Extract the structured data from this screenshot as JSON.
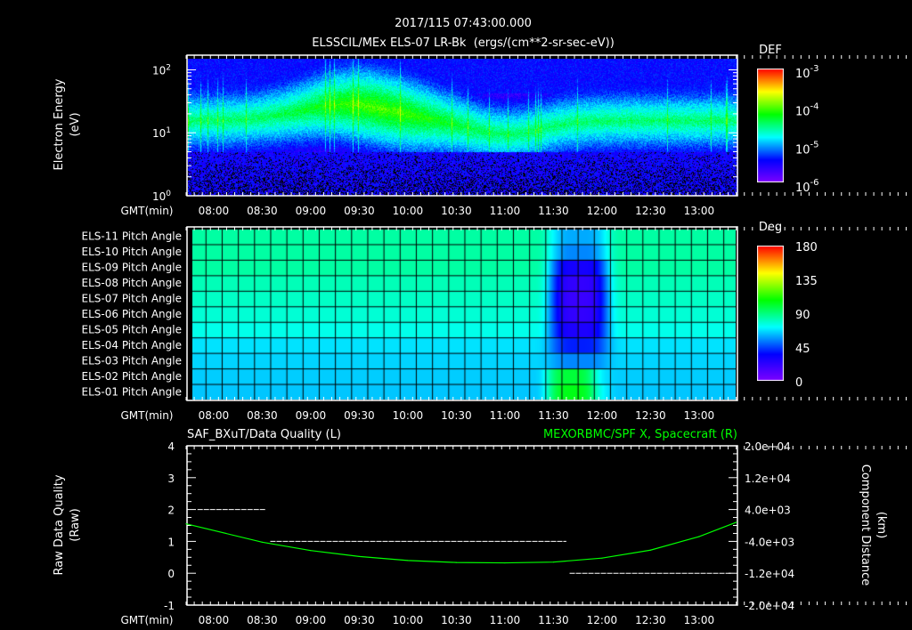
{
  "header": {
    "timestamp": "2017/115 07:43:00.000"
  },
  "chart_data": [
    {
      "type": "heatmap",
      "title": "ELSSCIL/MEx ELS-07 LR-Bk  (ergs/(cm**2-sr-sec-eV))",
      "ylabel": "Electron Energy (eV)",
      "yscale": "log",
      "ylim": [
        1,
        150
      ],
      "yticks": [
        "10^0",
        "10^1",
        "10^2"
      ],
      "xlabel": "GMT(min)",
      "xrange_min": [
        463,
        1403.6
      ],
      "xticks": [
        "08:00",
        "08:30",
        "09:00",
        "09:30",
        "10:00",
        "10:30",
        "11:00",
        "11:30",
        "12:00",
        "12:30",
        "13:00"
      ],
      "colorbar": {
        "label": "DEF",
        "scale": "log",
        "range": [
          1e-06,
          0.001
        ],
        "ticks": [
          "10^-3",
          "10^-4",
          "10^-5",
          "10^-6"
        ]
      }
    },
    {
      "type": "heatmap",
      "ylabels": [
        "ELS-11 Pitch Angle",
        "ELS-10 Pitch Angle",
        "ELS-09 Pitch Angle",
        "ELS-08 Pitch Angle",
        "ELS-07 Pitch Angle",
        "ELS-06 Pitch Angle",
        "ELS-05 Pitch Angle",
        "ELS-04 Pitch Angle",
        "ELS-03 Pitch Angle",
        "ELS-02 Pitch Angle",
        "ELS-01 Pitch Angle"
      ],
      "row_baseline_deg": [
        85,
        85,
        85,
        82,
        80,
        78,
        75,
        68,
        66,
        65,
        64
      ],
      "row_dip_deg": [
        60,
        55,
        30,
        22,
        20,
        22,
        28,
        40,
        55,
        70,
        75
      ],
      "xlabel": "GMT(min)",
      "xticks": [
        "08:00",
        "08:30",
        "09:00",
        "09:30",
        "10:00",
        "10:30",
        "11:00",
        "11:30",
        "12:00",
        "12:30",
        "13:00"
      ],
      "colorbar": {
        "label": "Deg",
        "range": [
          0,
          180
        ],
        "ticks": [
          "180",
          "135",
          "90",
          "45",
          "0"
        ]
      }
    },
    {
      "type": "line",
      "title_left": "SAF_BXuT/Data Quality (L)",
      "title_right": "MEXORBMC/SPF X, Spacecraft (R)",
      "ylabel_left": "Raw Data Quality (Raw)",
      "ylabel_right": "Component Distance (km)",
      "ylim_left": [
        -1,
        4
      ],
      "yticks_left": [
        "4",
        "3",
        "2",
        "1",
        "0",
        "-1"
      ],
      "ylim_right": [
        -20000,
        20000
      ],
      "yticks_right": [
        "2.0e+04",
        "1.2e+04",
        "4.0e+03",
        "-4.0e+03",
        "-1.2e+04",
        "-2.0e+04"
      ],
      "xlabel": "GMT(min)",
      "xticks": [
        "08:00",
        "08:30",
        "09:00",
        "09:30",
        "10:00",
        "10:30",
        "11:00",
        "11:30",
        "12:00",
        "12:30",
        "13:00"
      ],
      "series": [
        {
          "name": "Data Quality",
          "color": "#ffffff",
          "style": "dashed",
          "segments": [
            {
              "x": [
                "07:50",
                "08:32"
              ],
              "y": 2
            },
            {
              "x": [
                "08:35",
                "11:38"
              ],
              "y": 1
            },
            {
              "x": [
                "11:40",
                "13:20"
              ],
              "y": 0
            }
          ]
        },
        {
          "name": "SPF X",
          "color": "#00ff00",
          "x": [
            "07:43",
            "08:30",
            "09:00",
            "09:30",
            "10:00",
            "10:30",
            "11:00",
            "11:30",
            "12:00",
            "12:30",
            "13:00",
            "13:23"
          ],
          "y": [
            400,
            -4200,
            -6300,
            -7800,
            -8800,
            -9300,
            -9400,
            -9200,
            -8200,
            -6200,
            -2800,
            800
          ]
        }
      ]
    }
  ],
  "colors": {
    "green_line": "#00ff00",
    "background": "#000000"
  }
}
